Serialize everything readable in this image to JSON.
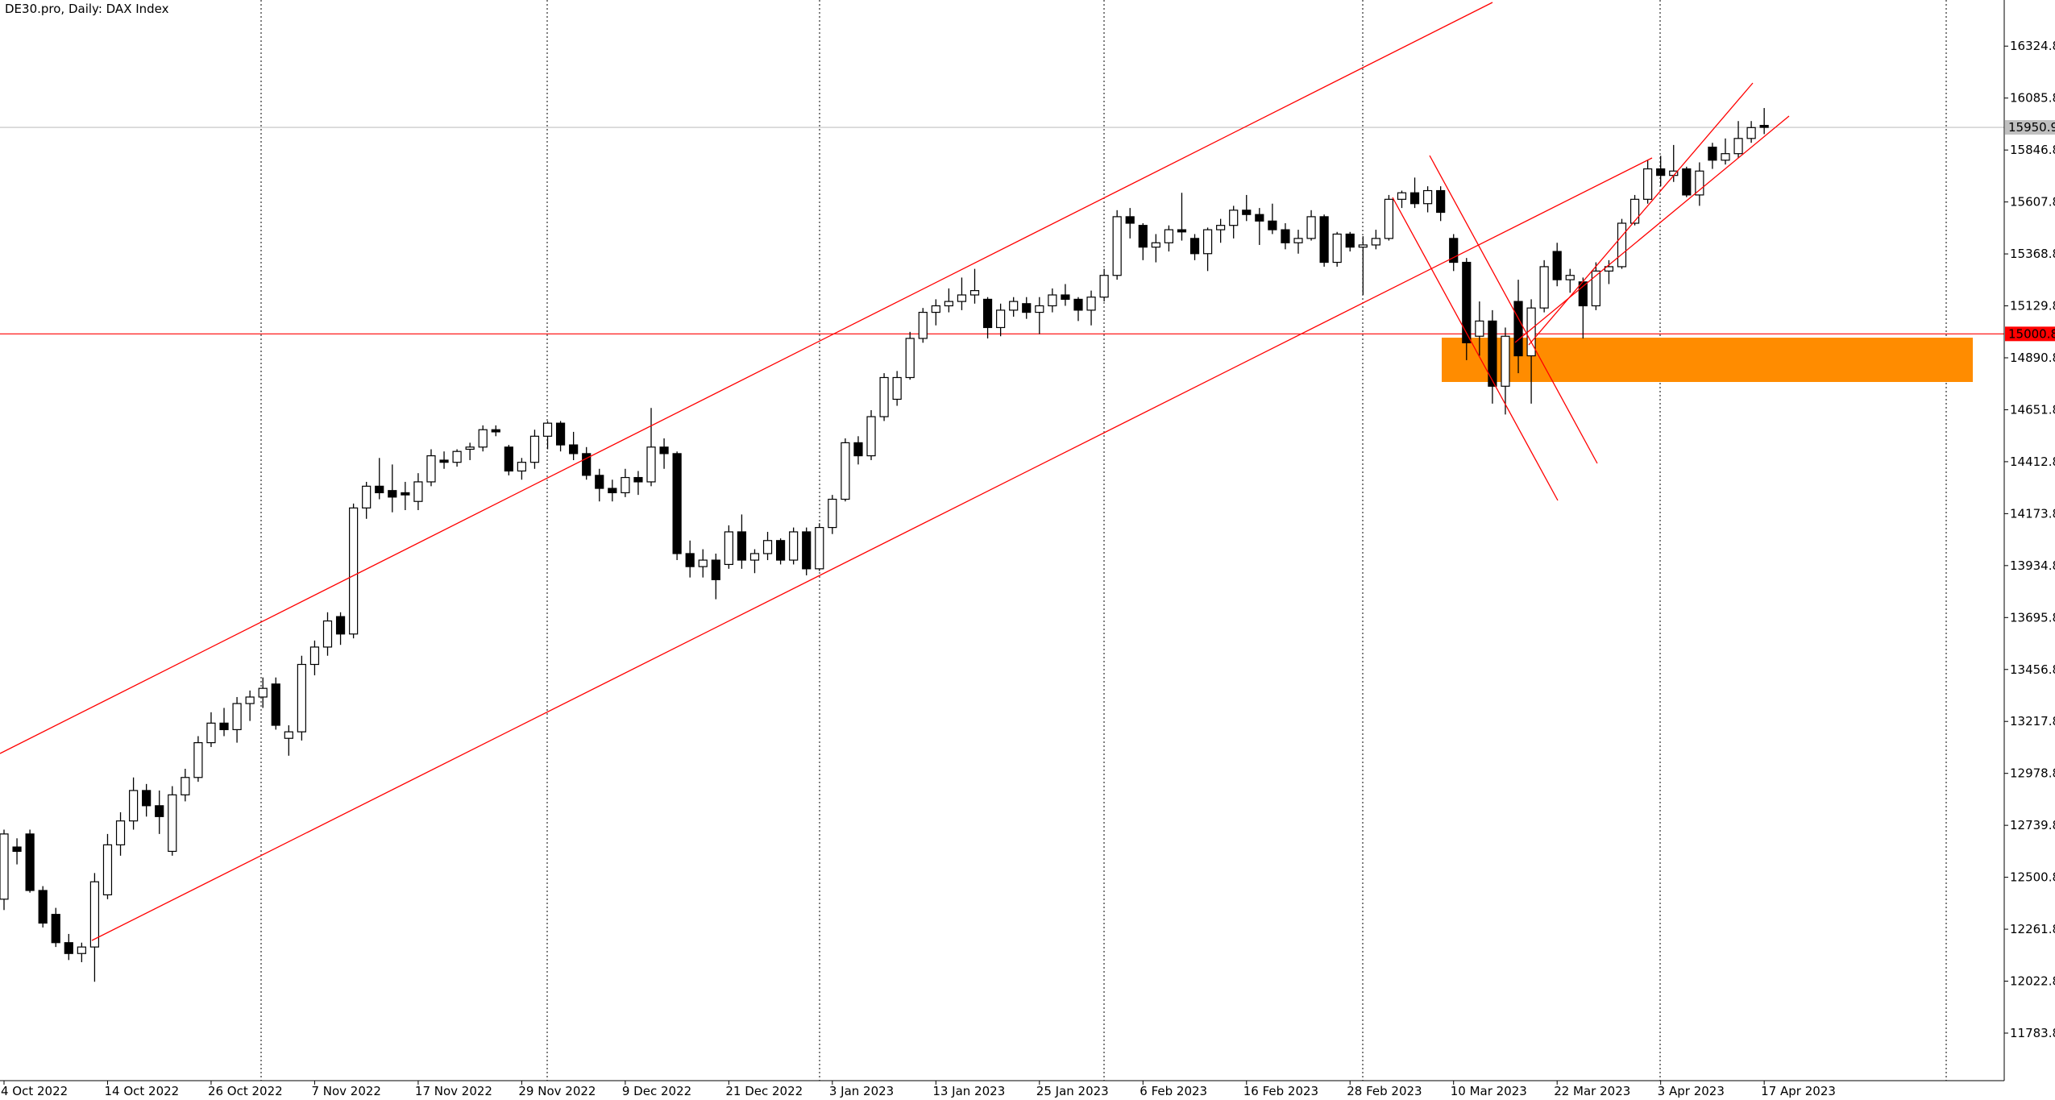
{
  "chart_data": {
    "type": "candlestick",
    "title": "DE30.pro, Daily:  DAX Index",
    "categories": [
      "4 Oct 2022",
      null,
      null,
      null,
      null,
      null,
      null,
      null,
      "14 Oct 2022",
      null,
      null,
      null,
      null,
      null,
      null,
      null,
      "26 Oct 2022",
      null,
      null,
      null,
      null,
      null,
      null,
      null,
      "7 Nov 2022",
      null,
      null,
      null,
      null,
      null,
      null,
      null,
      "17 Nov 2022",
      null,
      null,
      null,
      null,
      null,
      null,
      null,
      "29 Nov 2022",
      null,
      null,
      null,
      null,
      null,
      null,
      null,
      "9 Dec 2022",
      null,
      null,
      null,
      null,
      null,
      null,
      null,
      "21 Dec 2022",
      null,
      null,
      null,
      null,
      null,
      null,
      null,
      "3 Jan 2023",
      null,
      null,
      null,
      null,
      null,
      null,
      null,
      "13 Jan 2023",
      null,
      null,
      null,
      null,
      null,
      null,
      null,
      "25 Jan 2023",
      null,
      null,
      null,
      null,
      null,
      null,
      null,
      "6 Feb 2023",
      null,
      null,
      null,
      null,
      null,
      null,
      null,
      "16 Feb 2023",
      null,
      null,
      null,
      null,
      null,
      null,
      null,
      "28 Feb 2023",
      null,
      null,
      null,
      null,
      null,
      null,
      null,
      "10 Mar 2023",
      null,
      null,
      null,
      null,
      null,
      null,
      null,
      "22 Mar 2023",
      null,
      null,
      null,
      null,
      null,
      null,
      null,
      "3 Apr 2023",
      null,
      null,
      null,
      null,
      null,
      null,
      null,
      "17 Apr 2023"
    ],
    "open": [
      12400,
      12640,
      12700,
      12440,
      12330,
      12200,
      12150,
      12180,
      12420,
      12650,
      12760,
      12900,
      12830,
      12620,
      12880,
      12960,
      13120,
      13210,
      13180,
      13300,
      13330,
      13390,
      13140,
      13170,
      13480,
      13560,
      13700,
      13620,
      14200,
      14300,
      14280,
      14270,
      14230,
      14320,
      14420,
      14410,
      14470,
      14480,
      14560,
      14480,
      14370,
      14410,
      14530,
      14590,
      14490,
      14450,
      14350,
      14290,
      14270,
      14340,
      14320,
      14480,
      14450,
      13990,
      13930,
      13960,
      13940,
      14090,
      13960,
      13990,
      14050,
      13960,
      14090,
      13920,
      14110,
      14240,
      14500,
      14440,
      14620,
      14700,
      14800,
      14980,
      15100,
      15130,
      15150,
      15180,
      15160,
      15030,
      15110,
      15140,
      15100,
      15130,
      15180,
      15160,
      15110,
      15170,
      15270,
      15540,
      15500,
      15400,
      15420,
      15480,
      15440,
      15370,
      15480,
      15500,
      15570,
      15550,
      15520,
      15480,
      15420,
      15440,
      15540,
      15330,
      15460,
      15400,
      15410,
      15440,
      15620,
      15650,
      15600,
      15660,
      15440,
      15330,
      14990,
      15060,
      14760,
      15150,
      14900,
      15120,
      15380,
      15250,
      15240,
      15130,
      15290,
      15310,
      15510,
      15620,
      15760,
      15730,
      15760,
      15640,
      15860,
      15800,
      15830,
      15900,
      15960
    ],
    "high": [
      12720,
      12680,
      12720,
      12460,
      12360,
      12240,
      12200,
      12520,
      12700,
      12800,
      12960,
      12930,
      12900,
      12920,
      13000,
      13150,
      13260,
      13280,
      13330,
      13360,
      13420,
      13420,
      13200,
      13520,
      13590,
      13720,
      13720,
      14220,
      14320,
      14430,
      14400,
      14320,
      14360,
      14470,
      14460,
      14470,
      14500,
      14580,
      14580,
      14490,
      14430,
      14560,
      14600,
      14600,
      14550,
      14480,
      14380,
      14330,
      14380,
      14370,
      14660,
      14520,
      14460,
      14050,
      14010,
      13990,
      14120,
      14170,
      14010,
      14090,
      14060,
      14110,
      14110,
      14130,
      14260,
      14520,
      14530,
      14650,
      14820,
      14830,
      15010,
      15120,
      15160,
      15210,
      15260,
      15300,
      15170,
      15140,
      15170,
      15170,
      15170,
      15210,
      15230,
      15170,
      15200,
      15300,
      15570,
      15580,
      15510,
      15460,
      15500,
      15650,
      15460,
      15490,
      15530,
      15590,
      15640,
      15580,
      15600,
      15510,
      15480,
      15570,
      15550,
      15470,
      15470,
      15450,
      15480,
      15640,
      15660,
      15720,
      15680,
      15680,
      15460,
      15350,
      15150,
      15110,
      15030,
      15250,
      15160,
      15340,
      15420,
      15300,
      15260,
      15330,
      15340,
      15530,
      15640,
      15800,
      15820,
      15870,
      15770,
      15790,
      15880,
      15900,
      15980,
      15980,
      16040
    ],
    "low": [
      12350,
      12560,
      12430,
      12270,
      12180,
      12120,
      12110,
      12020,
      12400,
      12600,
      12720,
      12780,
      12700,
      12600,
      12850,
      12940,
      13100,
      13150,
      13120,
      13220,
      13280,
      13180,
      13060,
      13130,
      13430,
      13520,
      13570,
      13600,
      14150,
      14240,
      14180,
      14190,
      14190,
      14300,
      14380,
      14390,
      14420,
      14460,
      14530,
      14350,
      14330,
      14380,
      14470,
      14460,
      14420,
      14330,
      14230,
      14230,
      14250,
      14260,
      14300,
      14380,
      13960,
      13880,
      13880,
      13780,
      13920,
      13920,
      13900,
      13960,
      13940,
      13940,
      13890,
      13910,
      14080,
      14230,
      14400,
      14420,
      14600,
      14670,
      14790,
      14960,
      15040,
      15100,
      15110,
      15140,
      14980,
      14990,
      15080,
      15070,
      15000,
      15100,
      15130,
      15060,
      15040,
      15150,
      15250,
      15440,
      15340,
      15330,
      15380,
      15430,
      15340,
      15290,
      15420,
      15440,
      15520,
      15410,
      15460,
      15390,
      15370,
      15430,
      15310,
      15310,
      15380,
      15180,
      15390,
      15430,
      15580,
      15580,
      15560,
      15520,
      15290,
      14880,
      14900,
      14680,
      14630,
      14820,
      14680,
      15100,
      15220,
      15190,
      14980,
      15110,
      15230,
      15300,
      15500,
      15600,
      15680,
      15700,
      15630,
      15590,
      15760,
      15780,
      15810,
      15880,
      15920
    ],
    "close": [
      12700,
      12620,
      12440,
      12290,
      12200,
      12150,
      12180,
      12480,
      12650,
      12760,
      12900,
      12830,
      12780,
      12880,
      12960,
      13120,
      13210,
      13180,
      13300,
      13330,
      13370,
      13200,
      13170,
      13480,
      13560,
      13680,
      13620,
      14200,
      14300,
      14270,
      14250,
      14260,
      14320,
      14440,
      14410,
      14460,
      14480,
      14560,
      14550,
      14370,
      14410,
      14530,
      14590,
      14490,
      14450,
      14350,
      14290,
      14270,
      14340,
      14320,
      14480,
      14450,
      13990,
      13930,
      13960,
      13870,
      14090,
      13960,
      13990,
      14050,
      13960,
      14090,
      13920,
      14110,
      14240,
      14500,
      14440,
      14620,
      14800,
      14800,
      14980,
      15100,
      15130,
      15150,
      15180,
      15200,
      15030,
      15110,
      15150,
      15100,
      15130,
      15180,
      15160,
      15110,
      15170,
      15270,
      15540,
      15510,
      15400,
      15420,
      15480,
      15470,
      15370,
      15480,
      15500,
      15570,
      15550,
      15520,
      15480,
      15420,
      15440,
      15540,
      15330,
      15460,
      15400,
      15410,
      15440,
      15620,
      15650,
      15600,
      15660,
      15560,
      15330,
      14960,
      15060,
      14760,
      14990,
      14900,
      15120,
      15310,
      15250,
      15270,
      15130,
      15290,
      15310,
      15510,
      15620,
      15760,
      15730,
      15750,
      15640,
      15750,
      15800,
      15830,
      15900,
      15950,
      15950.9
    ],
    "ylim": [
      11565,
      16537
    ],
    "yticks": [
      11783.8,
      12022.8,
      12261.8,
      12500.8,
      12739.8,
      12978.8,
      13217.8,
      13456.8,
      13695.8,
      13934.8,
      14173.8,
      14412.8,
      14651.8,
      14890.8,
      15129.8,
      15368.8,
      15607.8,
      15846.8,
      16085.8,
      16324.8
    ],
    "price_lines": [
      {
        "value": 15000.8,
        "color": "#ff0000"
      },
      {
        "value": 15950.9,
        "color": "#c0c0c0"
      }
    ],
    "up_color": "#ffffff",
    "down_color": "#000000"
  }
}
